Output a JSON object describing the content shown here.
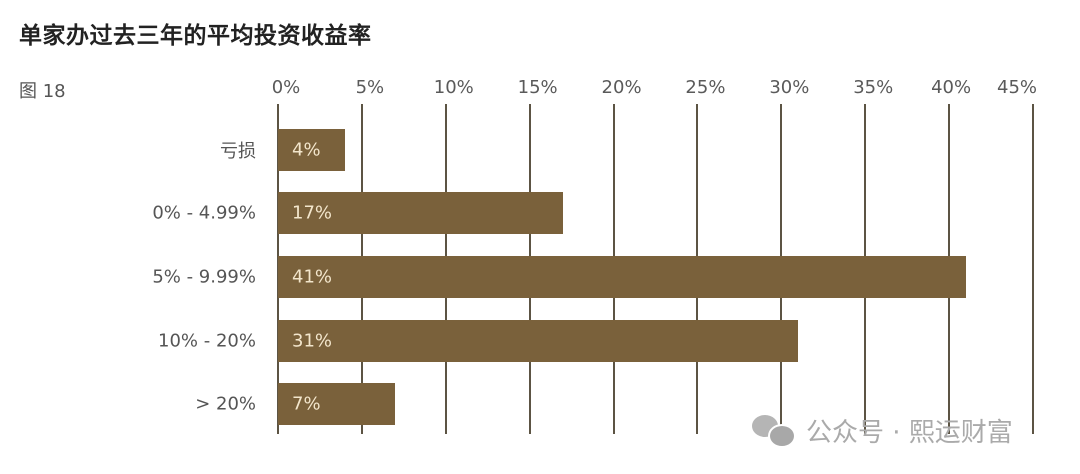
{
  "header": {
    "title": "单家办过去三年的平均投资收益率",
    "figure_label": "图 18"
  },
  "chart_data": {
    "type": "bar",
    "orientation": "horizontal",
    "title": "单家办过去三年的平均投资收益率",
    "figure_label": "图 18",
    "xlabel": "",
    "ylabel": "",
    "xlim": [
      0,
      45
    ],
    "x_ticks": [
      "0%",
      "5%",
      "10%",
      "15%",
      "20%",
      "25%",
      "30%",
      "35%",
      "40%",
      "45%"
    ],
    "grid": true,
    "legend": null,
    "categories": [
      "亏损",
      "0% - 4.99%",
      "5% - 9.99%",
      "10% - 20%",
      "> 20%"
    ],
    "values": [
      4,
      17,
      41,
      31,
      7
    ],
    "value_labels": [
      "4%",
      "17%",
      "41%",
      "31%",
      "7%"
    ],
    "bar_color": "#7a613b",
    "value_label_color": "#f3e6cc"
  },
  "watermark": {
    "icon": "wechat-icon",
    "text": "公众号 · 熙运财富"
  }
}
